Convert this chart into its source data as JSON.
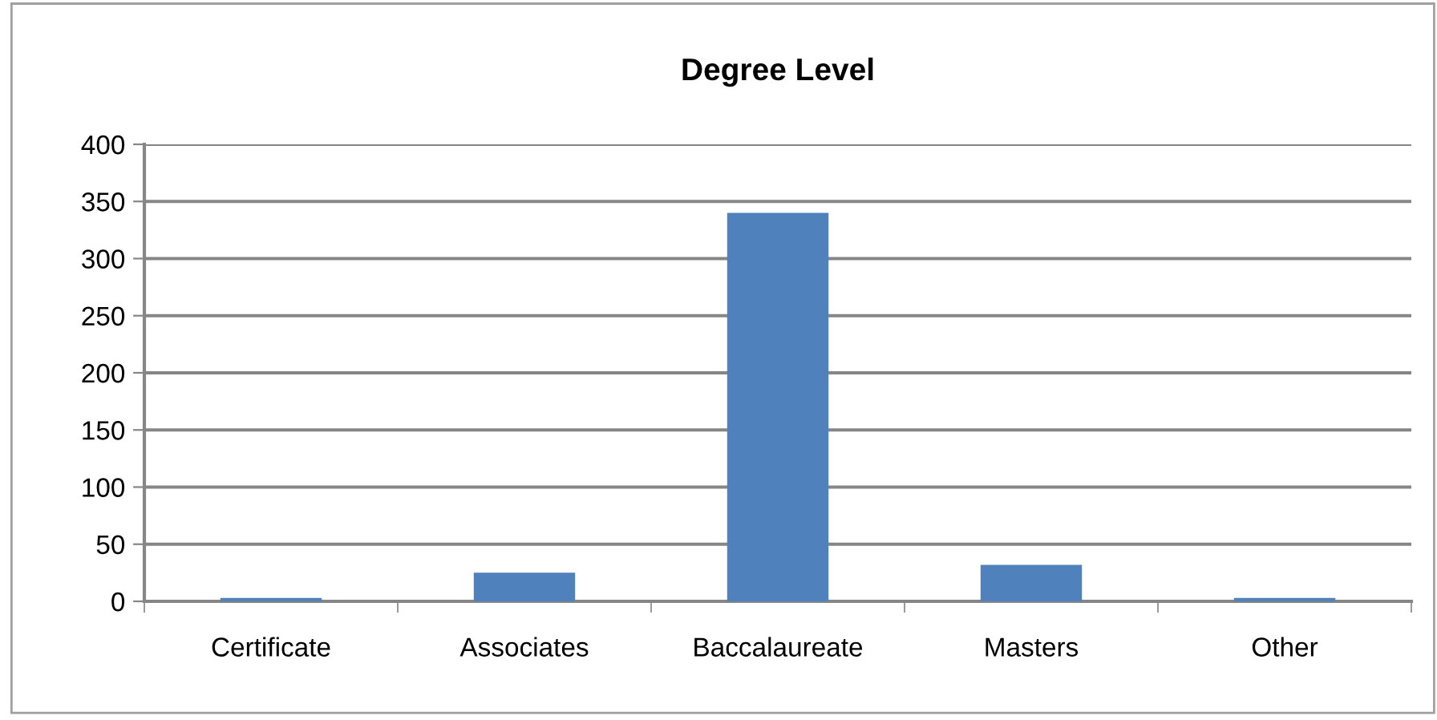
{
  "chart_data": {
    "type": "bar",
    "title": "Degree Level",
    "categories": [
      "Certificate",
      "Associates",
      "Baccalaureate",
      "Masters",
      "Other"
    ],
    "values": [
      3,
      25,
      340,
      32,
      3
    ],
    "color": "#4f81bd",
    "ylim": [
      0,
      400
    ],
    "yticks": [
      0,
      50,
      100,
      150,
      200,
      250,
      300,
      350,
      400
    ],
    "grid": "y"
  }
}
